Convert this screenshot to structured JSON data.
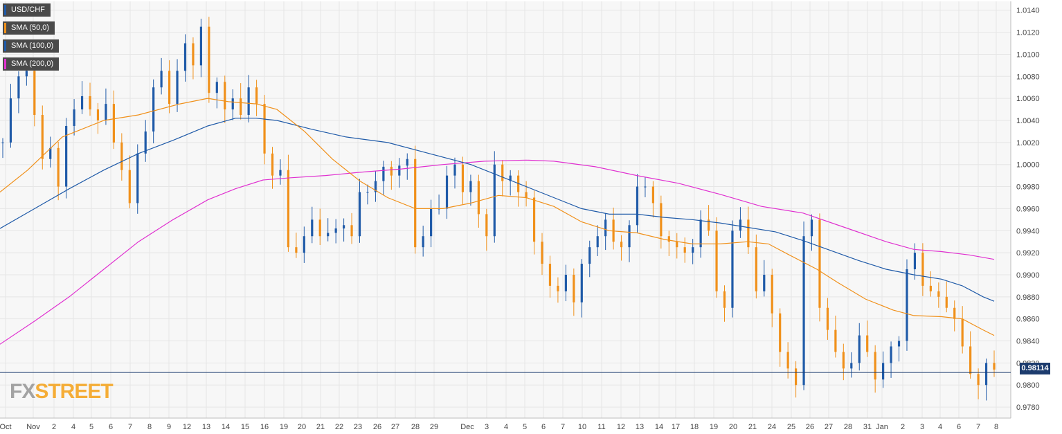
{
  "legend": [
    {
      "label": "USD/CHF",
      "color": "#1f5aa8"
    },
    {
      "label": "SMA (50,0)",
      "color": "#f0901a"
    },
    {
      "label": "SMA (100,0)",
      "color": "#1f5aa8"
    },
    {
      "label": "SMA (200,0)",
      "color": "#e030d0"
    }
  ],
  "logo": {
    "part1": "FX",
    "part2": "STREET"
  },
  "current_price_label": "0.98114",
  "chart_data": {
    "type": "candlestick",
    "title": "",
    "xlabel": "",
    "ylabel": "",
    "ylim": [
      0.977,
      1.0148
    ],
    "y_ticks": [
      "1.0140",
      "1.0120",
      "1.0100",
      "1.0080",
      "1.0060",
      "1.0040",
      "1.0020",
      "1.0000",
      "0.9980",
      "0.9960",
      "0.9940",
      "0.9920",
      "0.9900",
      "0.9880",
      "0.9860",
      "0.9840",
      "0.9820",
      "0.9800",
      "0.9780"
    ],
    "x_ticks": [
      "Oct",
      "Nov",
      "2",
      "4",
      "5",
      "6",
      "7",
      "8",
      "9",
      "12",
      "13",
      "14",
      "15",
      "16",
      "19",
      "20",
      "21",
      "22",
      "23",
      "26",
      "27",
      "28",
      "29",
      "Dec",
      "3",
      "4",
      "5",
      "6",
      "7",
      "10",
      "11",
      "12",
      "13",
      "14",
      "17",
      "18",
      "19",
      "20",
      "21",
      "24",
      "25",
      "26",
      "27",
      "28",
      "31",
      "Jan",
      "2",
      "3",
      "4",
      "6",
      "7",
      "8"
    ],
    "current_price": 0.98114,
    "grid": true,
    "legend_position": "top-left",
    "colors": {
      "up": "#1f5aa8",
      "down": "#f0901a",
      "sma50": "#f0901a",
      "sma100": "#1f5aa8",
      "sma200": "#e030d0",
      "grid": "#e6e6e6",
      "price_line": "#1d3c6e"
    },
    "price_path": [
      1.002,
      1.006,
      1.008,
      1.0085,
      1.0045,
      1.0005,
      1.0015,
      0.998,
      1.0035,
      1.005,
      1.0062,
      1.005,
      1.004,
      1.0055,
      1.002,
      0.9995,
      0.9965,
      1.001,
      1.003,
      1.007,
      1.0085,
      1.0055,
      1.0085,
      1.011,
      1.009,
      1.0125,
      1.0065,
      1.0075,
      1.005,
      1.006,
      1.0045,
      1.007,
      1.0055,
      1.001,
      0.999,
      0.9995,
      0.9925,
      0.992,
      0.9935,
      0.995,
      0.9935,
      0.9938,
      0.9942,
      0.9945,
      0.9935,
      0.9975,
      0.9975,
      0.9985,
      0.9998,
      0.999,
      0.9999,
      1.0005,
      0.9925,
      0.9935,
      0.996,
      0.996,
      0.999,
      1.0,
      0.9975,
      0.9985,
      0.9955,
      0.9935,
      1.0,
      0.9985,
      0.999,
      0.9975,
      0.997,
      0.993,
      0.991,
      0.989,
      0.9885,
      0.99,
      0.9875,
      0.991,
      0.9925,
      0.9935,
      0.995,
      0.993,
      0.9925,
      0.9945,
      0.998,
      0.998,
      0.9965,
      0.9935,
      0.993,
      0.9925,
      0.992,
      0.9925,
      0.995,
      0.994,
      0.9885,
      0.987,
      0.994,
      0.995,
      0.9925,
      0.9885,
      0.99,
      0.9865,
      0.983,
      0.9815,
      0.98,
      0.9935,
      0.995,
      0.987,
      0.985,
      0.983,
      0.9815,
      0.982,
      0.9845,
      0.983,
      0.9805,
      0.982,
      0.9835,
      0.984,
      0.9905,
      0.992,
      0.989,
      0.9885,
      0.988,
      0.987,
      0.986,
      0.9835,
      0.981,
      0.98,
      0.982,
      0.9814
    ],
    "sma50": [
      [
        0,
        0.9975
      ],
      [
        40,
        0.9995
      ],
      [
        90,
        1.0025
      ],
      [
        150,
        1.004
      ],
      [
        200,
        1.0045
      ],
      [
        260,
        1.0055
      ],
      [
        300,
        1.006
      ],
      [
        330,
        1.0057
      ],
      [
        370,
        1.0055
      ],
      [
        400,
        1.005
      ],
      [
        440,
        1.003
      ],
      [
        480,
        1.0005
      ],
      [
        520,
        0.9985
      ],
      [
        560,
        0.997
      ],
      [
        600,
        0.996
      ],
      [
        640,
        0.996
      ],
      [
        680,
        0.9965
      ],
      [
        720,
        0.9972
      ],
      [
        760,
        0.997
      ],
      [
        800,
        0.9962
      ],
      [
        840,
        0.9948
      ],
      [
        880,
        0.994
      ],
      [
        920,
        0.9938
      ],
      [
        960,
        0.9932
      ],
      [
        1000,
        0.9928
      ],
      [
        1040,
        0.9928
      ],
      [
        1080,
        0.993
      ],
      [
        1110,
        0.9928
      ],
      [
        1140,
        0.9918
      ],
      [
        1180,
        0.9905
      ],
      [
        1210,
        0.9893
      ],
      [
        1250,
        0.9878
      ],
      [
        1290,
        0.9868
      ],
      [
        1320,
        0.9863
      ],
      [
        1360,
        0.9862
      ],
      [
        1390,
        0.986
      ],
      [
        1420,
        0.985
      ],
      [
        1436,
        0.9845
      ]
    ],
    "sma100": [
      [
        0,
        0.9942
      ],
      [
        50,
        0.996
      ],
      [
        100,
        0.9978
      ],
      [
        150,
        0.9995
      ],
      [
        200,
        1.001
      ],
      [
        250,
        1.0022
      ],
      [
        300,
        1.0035
      ],
      [
        340,
        1.0042
      ],
      [
        370,
        1.0042
      ],
      [
        400,
        1.004
      ],
      [
        450,
        1.0032
      ],
      [
        500,
        1.0025
      ],
      [
        560,
        1.002
      ],
      [
        620,
        1.001
      ],
      [
        680,
        1.0
      ],
      [
        720,
        0.999
      ],
      [
        760,
        0.998
      ],
      [
        800,
        0.997
      ],
      [
        840,
        0.996
      ],
      [
        880,
        0.9955
      ],
      [
        920,
        0.9955
      ],
      [
        960,
        0.9952
      ],
      [
        1000,
        0.995
      ],
      [
        1040,
        0.9947
      ],
      [
        1080,
        0.9943
      ],
      [
        1120,
        0.9939
      ],
      [
        1160,
        0.9931
      ],
      [
        1200,
        0.9922
      ],
      [
        1240,
        0.9913
      ],
      [
        1280,
        0.9905
      ],
      [
        1320,
        0.99
      ],
      [
        1360,
        0.9896
      ],
      [
        1390,
        0.989
      ],
      [
        1420,
        0.988
      ],
      [
        1436,
        0.9876
      ]
    ],
    "sma200": [
      [
        0,
        0.9837
      ],
      [
        50,
        0.9858
      ],
      [
        100,
        0.988
      ],
      [
        150,
        0.9905
      ],
      [
        200,
        0.993
      ],
      [
        250,
        0.995
      ],
      [
        300,
        0.9968
      ],
      [
        340,
        0.9978
      ],
      [
        380,
        0.9986
      ],
      [
        420,
        0.9988
      ],
      [
        470,
        0.999
      ],
      [
        520,
        0.9993
      ],
      [
        580,
        0.9996
      ],
      [
        640,
        1.0
      ],
      [
        700,
        1.0003
      ],
      [
        760,
        1.0004
      ],
      [
        800,
        1.0003
      ],
      [
        860,
        0.9998
      ],
      [
        920,
        0.999
      ],
      [
        980,
        0.9983
      ],
      [
        1040,
        0.9973
      ],
      [
        1100,
        0.9962
      ],
      [
        1160,
        0.9956
      ],
      [
        1220,
        0.9943
      ],
      [
        1280,
        0.993
      ],
      [
        1320,
        0.9923
      ],
      [
        1360,
        0.9921
      ],
      [
        1400,
        0.9918
      ],
      [
        1436,
        0.9914
      ]
    ]
  }
}
